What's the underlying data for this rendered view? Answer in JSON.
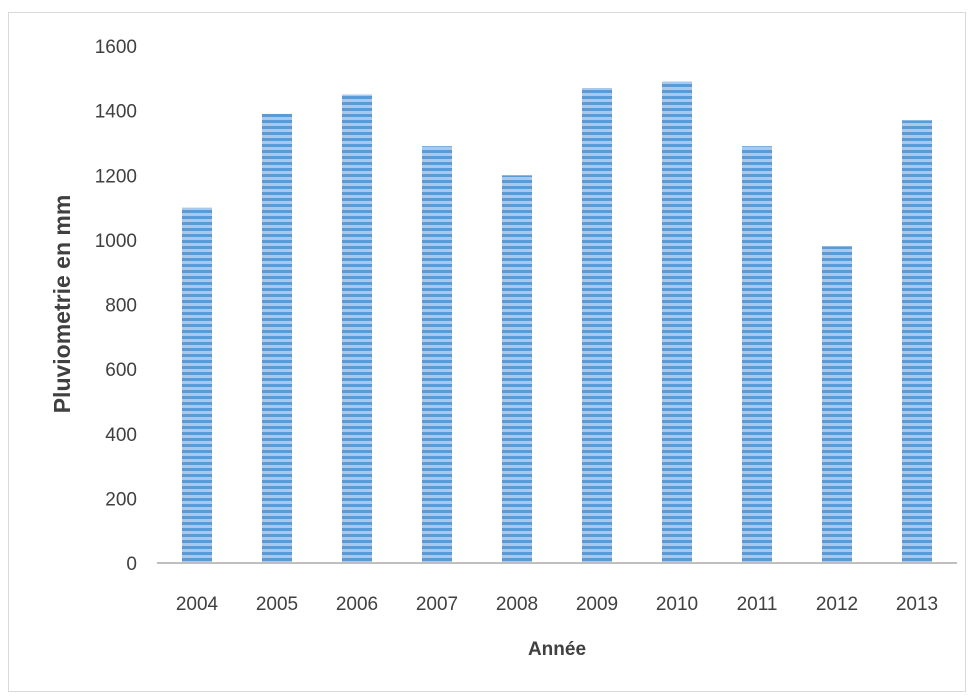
{
  "chart_data": {
    "type": "bar",
    "title": "",
    "xlabel": "Année",
    "ylabel": "Pluviometrie  en mm",
    "categories": [
      "2004",
      "2005",
      "2006",
      "2007",
      "2008",
      "2009",
      "2010",
      "2011",
      "2012",
      "2013"
    ],
    "values": [
      1100,
      1390,
      1450,
      1290,
      1200,
      1470,
      1490,
      1290,
      980,
      1370
    ],
    "ylim": [
      0,
      1600
    ],
    "yticks": [
      "0",
      "200",
      "400",
      "600",
      "800",
      "1000",
      "1200",
      "1400",
      "1600"
    ],
    "grid": false,
    "legend": "none",
    "bar_color": "#5b9bd5",
    "bar_pattern": "horizontal-stripes"
  }
}
